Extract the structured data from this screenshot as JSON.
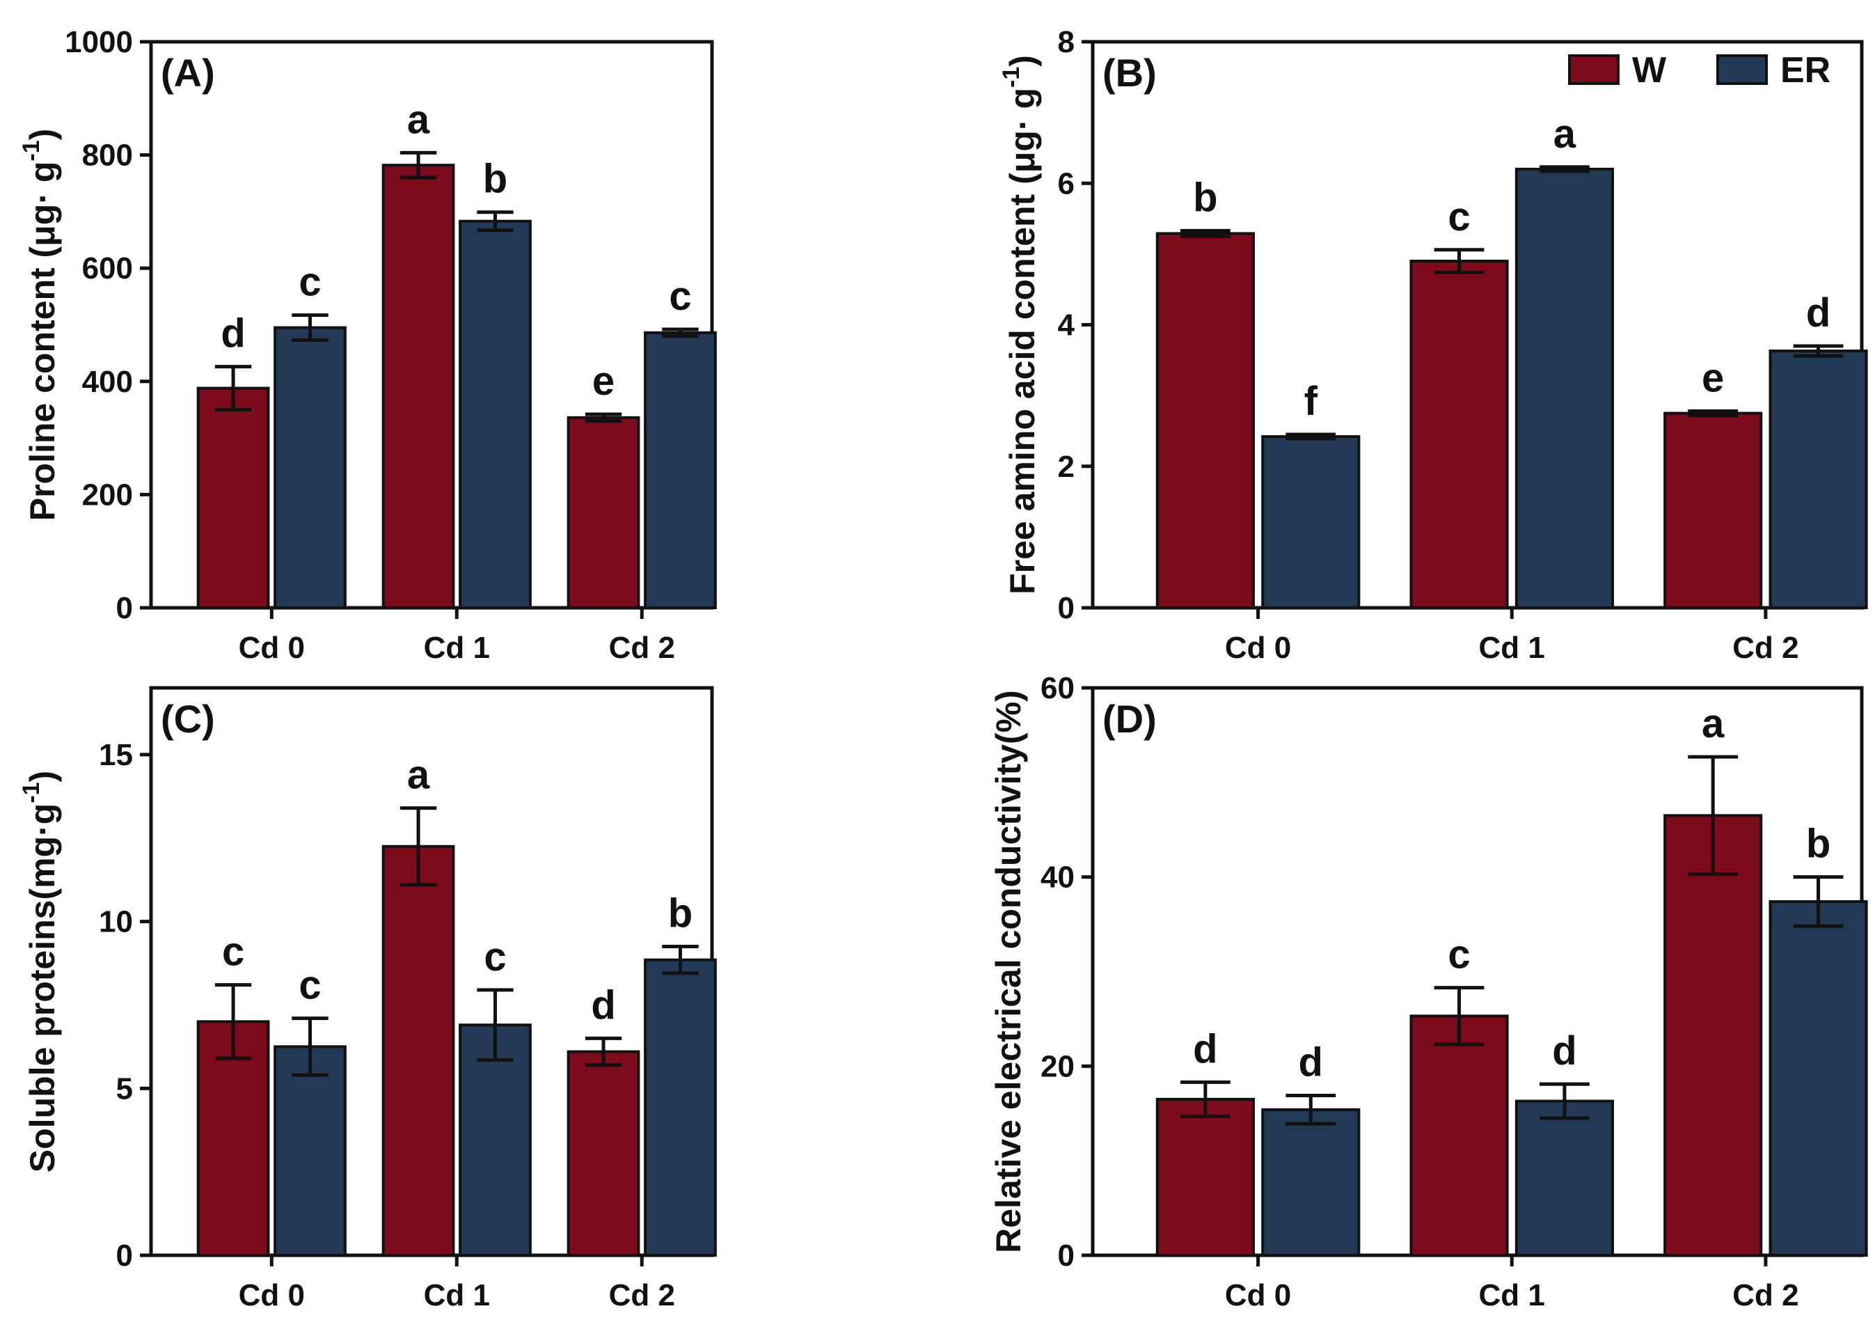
{
  "legend": {
    "items": [
      {
        "name": "W",
        "color": "#7e0b1c"
      },
      {
        "name": "ER",
        "color": "#223a55"
      }
    ]
  },
  "chart_data": [
    {
      "type": "bar",
      "panel": "(A)",
      "ylabel": "Proline content (μg· g",
      "ylabel_sup": "-1",
      "ylabel_close": ")",
      "categories": [
        "Cd 0",
        "Cd 1",
        "Cd 2"
      ],
      "ylim": [
        0,
        1000
      ],
      "yticks": [
        0,
        200,
        400,
        600,
        800,
        1000
      ],
      "series": [
        {
          "name": "W",
          "values": [
            388,
            782,
            336
          ],
          "errors": [
            38,
            22,
            6
          ],
          "letters": [
            "d",
            "a",
            "e"
          ]
        },
        {
          "name": "ER",
          "values": [
            495,
            683,
            486
          ],
          "errors": [
            22,
            16,
            6
          ],
          "letters": [
            "c",
            "b",
            "c"
          ]
        }
      ]
    },
    {
      "type": "bar",
      "panel": "(B)",
      "ylabel": "Free amino acid content (μg· g",
      "ylabel_sup": "-1",
      "ylabel_close": ")",
      "categories": [
        "Cd 0",
        "Cd 1",
        "Cd 2"
      ],
      "ylim": [
        0,
        8
      ],
      "yticks": [
        0,
        2,
        4,
        6,
        8
      ],
      "series": [
        {
          "name": "W",
          "values": [
            5.29,
            4.9,
            2.75
          ],
          "errors": [
            0.04,
            0.16,
            0.03
          ],
          "letters": [
            "b",
            "c",
            "e"
          ]
        },
        {
          "name": "ER",
          "values": [
            2.42,
            6.2,
            3.63
          ],
          "errors": [
            0.03,
            0.03,
            0.07
          ],
          "letters": [
            "f",
            "a",
            "d"
          ]
        }
      ]
    },
    {
      "type": "bar",
      "panel": "(C)",
      "ylabel": "Soluble proteins(mg·g",
      "ylabel_sup": "-1",
      "ylabel_close": ")",
      "categories": [
        "Cd 0",
        "Cd 1",
        "Cd 2"
      ],
      "ylim": [
        0,
        17
      ],
      "yticks": [
        0,
        5,
        10,
        15
      ],
      "series": [
        {
          "name": "W",
          "values": [
            7.0,
            12.25,
            6.1
          ],
          "errors": [
            1.1,
            1.15,
            0.4
          ],
          "letters": [
            "c",
            "a",
            "d"
          ]
        },
        {
          "name": "ER",
          "values": [
            6.25,
            6.9,
            8.85
          ],
          "errors": [
            0.85,
            1.05,
            0.4
          ],
          "letters": [
            "c",
            "c",
            "b"
          ]
        }
      ]
    },
    {
      "type": "bar",
      "panel": "(D)",
      "ylabel": "Relative electrical conductivity(%)",
      "ylabel_sup": "",
      "ylabel_close": "",
      "categories": [
        "Cd 0",
        "Cd 1",
        "Cd 2"
      ],
      "ylim": [
        0,
        60
      ],
      "yticks": [
        0,
        20,
        40,
        60
      ],
      "series": [
        {
          "name": "W",
          "values": [
            16.5,
            25.3,
            46.5
          ],
          "errors": [
            1.8,
            3.0,
            6.2
          ],
          "letters": [
            "d",
            "c",
            "a"
          ]
        },
        {
          "name": "ER",
          "values": [
            15.4,
            16.3,
            37.4
          ],
          "errors": [
            1.5,
            1.8,
            2.6
          ],
          "letters": [
            "d",
            "d",
            "b"
          ]
        }
      ]
    }
  ]
}
